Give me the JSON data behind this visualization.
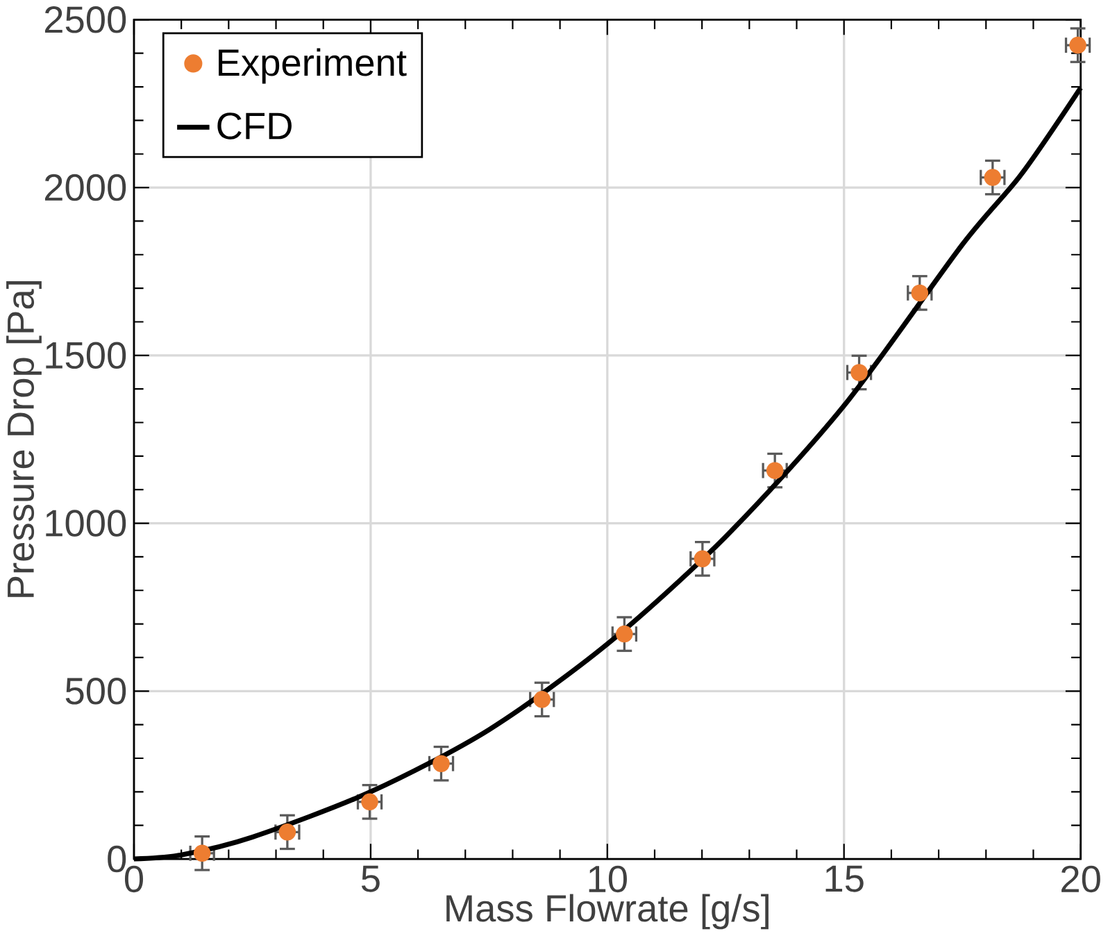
{
  "chart_data": {
    "type": "scatter",
    "xlabel": "Mass Flowrate [g/s]",
    "ylabel": "Pressure Drop [Pa]",
    "xlim": [
      0,
      20
    ],
    "ylim": [
      0,
      2500
    ],
    "xticks": [
      0,
      5,
      10,
      15,
      20
    ],
    "yticks": [
      0,
      500,
      1000,
      1500,
      2000,
      2500
    ],
    "grid": true,
    "legend": "top left",
    "series": [
      {
        "name": "Experiment",
        "color": "#ed7d31",
        "marker": "circle",
        "x": [
          1.44,
          3.24,
          4.98,
          6.49,
          8.62,
          10.36,
          12.01,
          13.54,
          15.32,
          16.6,
          18.14,
          19.94
        ],
        "values": [
          17,
          80,
          170,
          284,
          475,
          670,
          894,
          1157,
          1449,
          1686,
          2030,
          2424
        ],
        "errors": [
          50,
          50,
          50,
          50,
          50,
          50,
          50,
          50,
          50,
          50,
          50,
          50
        ],
        "xerrors": [
          0.25,
          0.25,
          0.25,
          0.25,
          0.25,
          0.25,
          0.25,
          0.25,
          0.25,
          0.25,
          0.25,
          0.25
        ]
      },
      {
        "name": "CFD",
        "type": "line",
        "color": "#000000",
        "marker": "none",
        "line_style": "solid",
        "x": [
          0,
          1,
          2.5,
          5,
          7.5,
          10,
          12.5,
          15,
          17.5,
          18.75,
          20
        ],
        "values": [
          0,
          12,
          65,
          200,
          385,
          640,
          960,
          1350,
          1830,
          2040,
          2297
        ]
      }
    ]
  }
}
